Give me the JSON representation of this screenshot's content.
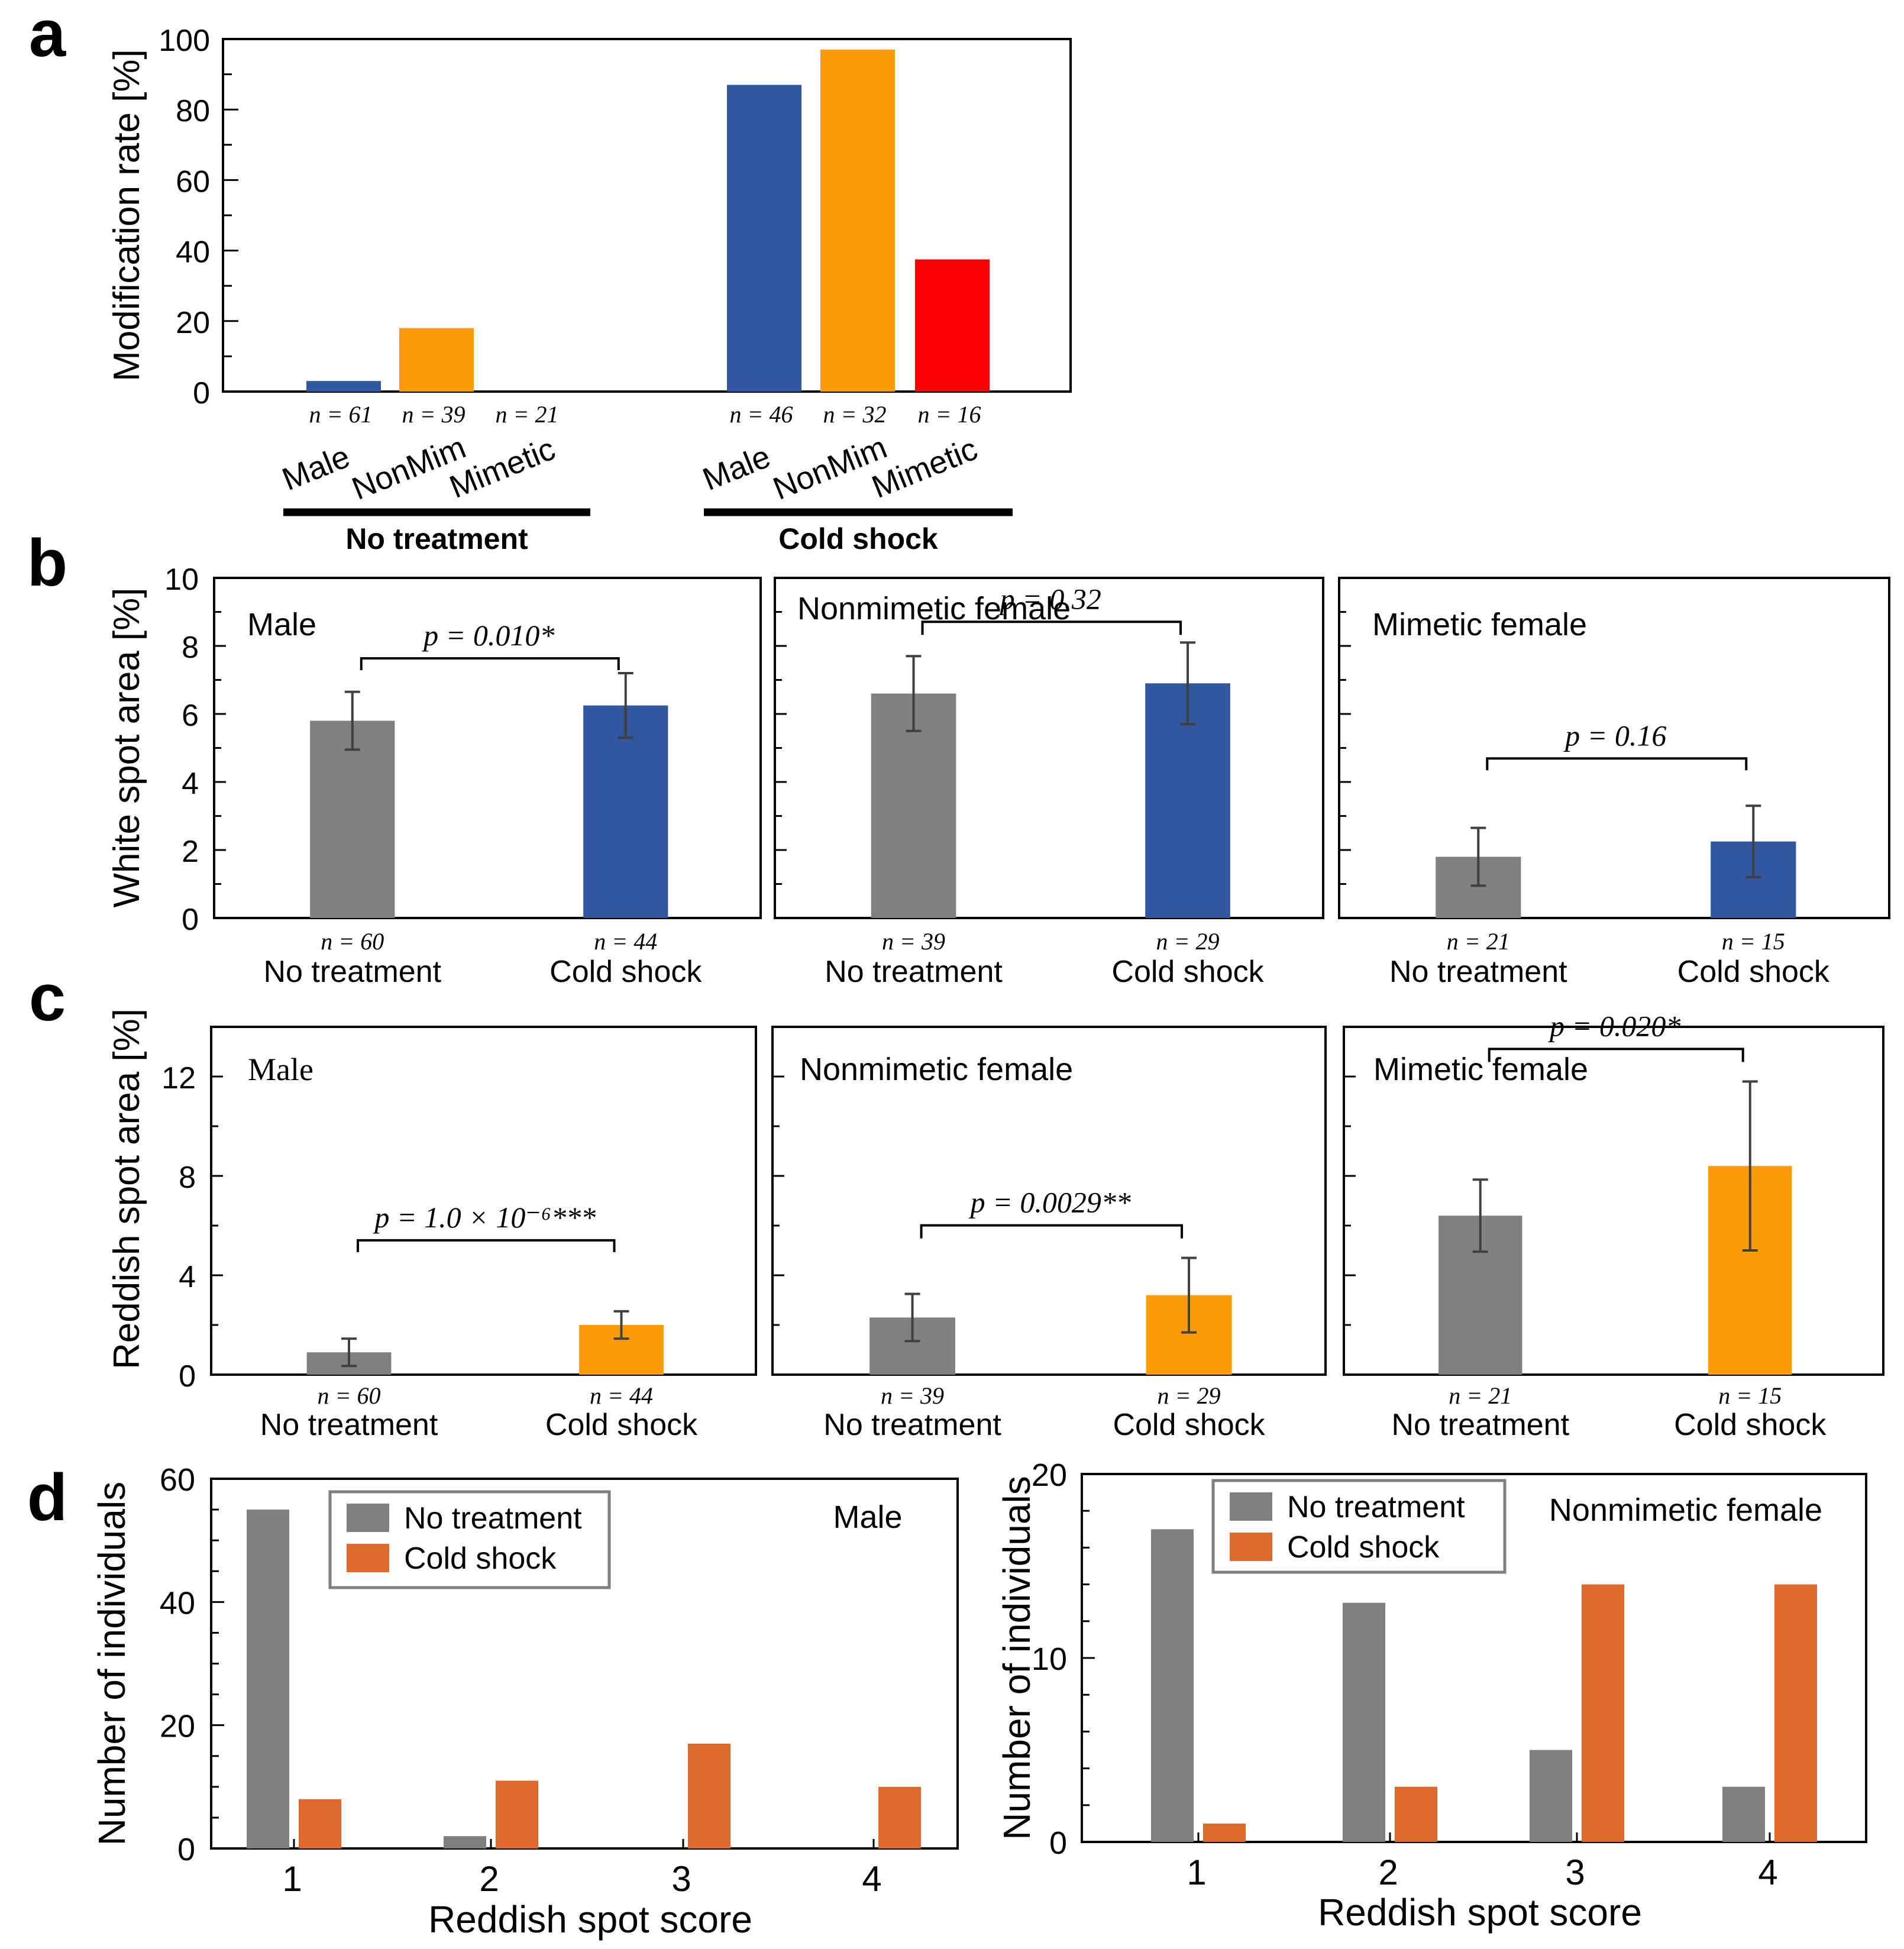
{
  "chart_data": [
    {
      "panel": "a",
      "type": "bar",
      "ylabel": "Modification rate [%]",
      "ylim": [
        0,
        100
      ],
      "yticks": [
        0,
        20,
        40,
        60,
        80,
        100
      ],
      "groups": [
        {
          "name": "No treatment",
          "bars": [
            {
              "label": "Male",
              "n": "n = 61",
              "value": 3
            },
            {
              "label": "NonMim",
              "n": "n = 39",
              "value": 18
            },
            {
              "label": "Mimetic",
              "n": "n = 21",
              "value": 0
            }
          ]
        },
        {
          "name": "Cold shock",
          "bars": [
            {
              "label": "Male",
              "n": "n = 46",
              "value": 87
            },
            {
              "label": "NonMim",
              "n": "n = 32",
              "value": 97
            },
            {
              "label": "Mimetic",
              "n": "n = 16",
              "value": 37.5
            }
          ]
        }
      ]
    },
    {
      "panel": "b",
      "type": "bar",
      "ylabel": "White spot area [%]",
      "ylim": [
        0,
        10
      ],
      "yticks": [
        0,
        2,
        4,
        6,
        8,
        10
      ],
      "subplots": [
        {
          "title": "Male",
          "p_text": "p = 0.010*",
          "categories": [
            "No treatment",
            "Cold shock"
          ],
          "n": [
            "n = 60",
            "n = 44"
          ],
          "values": [
            5.8,
            6.25
          ],
          "errors": [
            0.85,
            0.95
          ]
        },
        {
          "title": "Nonmimetic female",
          "p_text": "p = 0.32",
          "categories": [
            "No treatment",
            "Cold shock"
          ],
          "n": [
            "n = 39",
            "n = 29"
          ],
          "values": [
            6.6,
            6.9
          ],
          "errors": [
            1.1,
            1.2
          ]
        },
        {
          "title": "Mimetic female",
          "p_text": "p = 0.16",
          "categories": [
            "No treatment",
            "Cold shock"
          ],
          "n": [
            "n = 21",
            "n = 15"
          ],
          "values": [
            1.8,
            2.25
          ],
          "errors": [
            0.85,
            1.05
          ]
        }
      ]
    },
    {
      "panel": "c",
      "type": "bar",
      "ylabel": "Reddish spot area [%]",
      "ylim": [
        0,
        14
      ],
      "yticks": [
        0,
        4,
        8,
        12
      ],
      "subplots": [
        {
          "title": "Male",
          "p_text": "p = 1.0 × 10⁻⁶***",
          "categories": [
            "No treatment",
            "Cold shock"
          ],
          "n": [
            "n = 60",
            "n = 44"
          ],
          "values": [
            0.9,
            2.0
          ],
          "errors": [
            0.55,
            0.55
          ]
        },
        {
          "title": "Nonmimetic female",
          "p_text": "p = 0.0029**",
          "categories": [
            "No treatment",
            "Cold shock"
          ],
          "n": [
            "n = 39",
            "n = 29"
          ],
          "values": [
            2.3,
            3.2
          ],
          "errors": [
            0.95,
            1.5
          ]
        },
        {
          "title": "Mimetic female",
          "p_text": "p = 0.020*",
          "categories": [
            "No treatment",
            "Cold shock"
          ],
          "n": [
            "n = 21",
            "n = 15"
          ],
          "values": [
            6.4,
            8.4
          ],
          "errors": [
            1.45,
            3.4
          ]
        }
      ]
    },
    {
      "panel": "d",
      "type": "bar",
      "subplots": [
        {
          "title": "Male",
          "xlabel": "Reddish spot score",
          "ylabel": "Number of individuals",
          "ylim": [
            0,
            60
          ],
          "yticks": [
            0,
            20,
            40,
            60
          ],
          "categories": [
            "1",
            "2",
            "3",
            "4"
          ],
          "series": [
            {
              "name": "No treatment",
              "values": [
                55,
                2,
                0,
                0
              ]
            },
            {
              "name": "Cold shock",
              "values": [
                8,
                11,
                17,
                10
              ]
            }
          ]
        },
        {
          "title": "Nonmimetic female",
          "xlabel": "Reddish spot score",
          "ylabel": "Number of individuals",
          "ylim": [
            0,
            20
          ],
          "yticks": [
            0,
            10,
            20
          ],
          "categories": [
            "1",
            "2",
            "3",
            "4"
          ],
          "series": [
            {
              "name": "No treatment",
              "values": [
                17,
                13,
                5,
                3
              ]
            },
            {
              "name": "Cold shock",
              "values": [
                1,
                3,
                14,
                14
              ]
            }
          ]
        }
      ]
    }
  ],
  "panel_letters": [
    "a",
    "b",
    "c",
    "d"
  ],
  "colors": {
    "male_blue": "#30579f",
    "nonmim_orange": "#fb9b06",
    "mimetic_red": "#fb0006",
    "no_treatment_gray": "#808080",
    "cold_shock_orange_d": "#dd6a2c",
    "axis": "#000000",
    "errorbar": "#404040"
  }
}
